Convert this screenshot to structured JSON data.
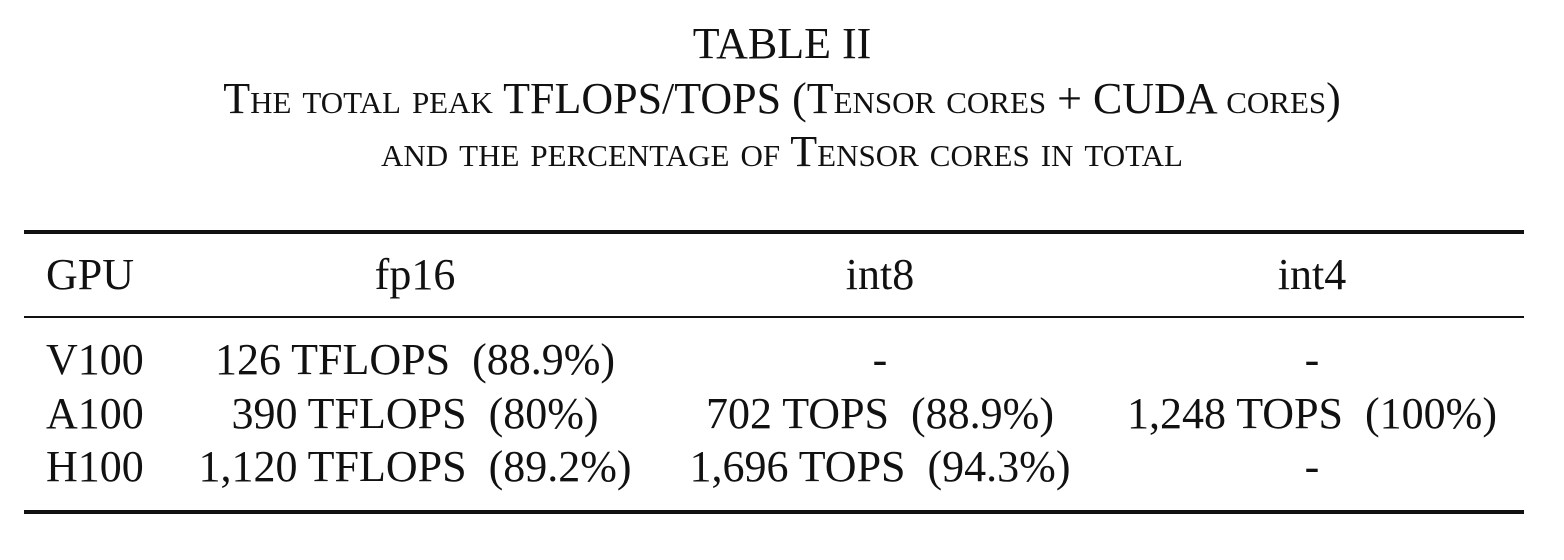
{
  "caption": {
    "label": "TABLE II",
    "line1": "The total peak TFLOPS/TOPS (Tensor cores + CUDA cores)",
    "line2": "and the percentage of Tensor cores in total"
  },
  "table": {
    "headers": [
      "GPU",
      "fp16",
      "int8",
      "int4"
    ],
    "rows": [
      {
        "gpu": "V100",
        "fp16": "126 TFLOPS  (88.9%)",
        "int8": "-",
        "int4": "-"
      },
      {
        "gpu": "A100",
        "fp16": "390 TFLOPS  (80%)",
        "int8": "702 TOPS  (88.9%)",
        "int4": "1,248 TOPS  (100%)"
      },
      {
        "gpu": "H100",
        "fp16": "1,120 TFLOPS  (89.2%)",
        "int8": "1,696 TOPS  (94.3%)",
        "int4": "-"
      }
    ]
  }
}
